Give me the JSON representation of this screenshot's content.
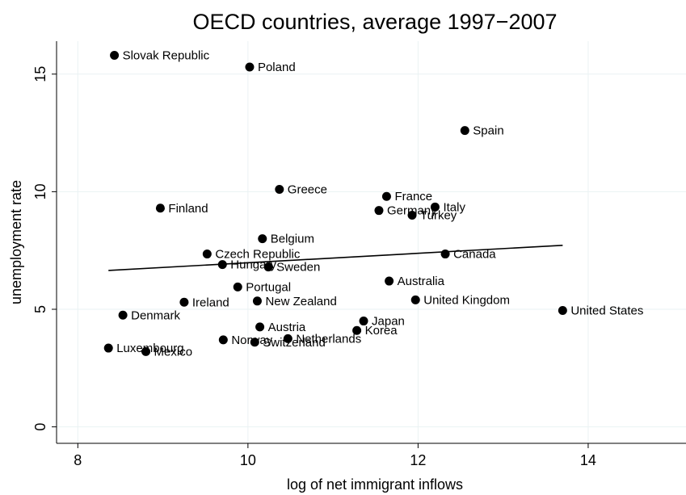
{
  "chart_data": {
    "type": "scatter",
    "title": "OECD countries, average 1997−2007",
    "xlabel": "log of net immigrant inflows",
    "ylabel": "unemployment rate",
    "xlim": [
      7.75,
      15.15
    ],
    "ylim": [
      -0.7,
      16.4
    ],
    "xticks": [
      8,
      10,
      12,
      14
    ],
    "yticks": [
      0,
      5,
      10,
      15
    ],
    "grid": true,
    "points": [
      {
        "label": "Slovak Republic",
        "x": 8.43,
        "y": 15.8
      },
      {
        "label": "Poland",
        "x": 10.02,
        "y": 15.3
      },
      {
        "label": "Spain",
        "x": 12.55,
        "y": 12.6
      },
      {
        "label": "Greece",
        "x": 10.37,
        "y": 10.1
      },
      {
        "label": "France",
        "x": 11.63,
        "y": 9.8
      },
      {
        "label": "Italy",
        "x": 12.2,
        "y": 9.35
      },
      {
        "label": "Finland",
        "x": 8.97,
        "y": 9.3
      },
      {
        "label": "Germany",
        "x": 11.54,
        "y": 9.2
      },
      {
        "label": "Turkey",
        "x": 11.93,
        "y": 9.0
      },
      {
        "label": "Belgium",
        "x": 10.17,
        "y": 8.0
      },
      {
        "label": "Czech Republic",
        "x": 9.52,
        "y": 7.35
      },
      {
        "label": "Canada",
        "x": 12.32,
        "y": 7.35
      },
      {
        "label": "Hungary",
        "x": 9.7,
        "y": 6.9
      },
      {
        "label": "Sweden",
        "x": 10.24,
        "y": 6.8
      },
      {
        "label": "Australia",
        "x": 11.66,
        "y": 6.2
      },
      {
        "label": "Portugal",
        "x": 9.88,
        "y": 5.95
      },
      {
        "label": "United Kingdom",
        "x": 11.97,
        "y": 5.4
      },
      {
        "label": "New Zealand",
        "x": 10.11,
        "y": 5.35
      },
      {
        "label": "Ireland",
        "x": 9.25,
        "y": 5.3
      },
      {
        "label": "United States",
        "x": 13.7,
        "y": 4.95
      },
      {
        "label": "Denmark",
        "x": 8.53,
        "y": 4.75
      },
      {
        "label": "Japan",
        "x": 11.36,
        "y": 4.5
      },
      {
        "label": "Austria",
        "x": 10.14,
        "y": 4.25
      },
      {
        "label": "Korea",
        "x": 11.28,
        "y": 4.1
      },
      {
        "label": "Netherlands",
        "x": 10.47,
        "y": 3.75
      },
      {
        "label": "Norway",
        "x": 9.71,
        "y": 3.7
      },
      {
        "label": "Switzerland",
        "x": 10.08,
        "y": 3.6
      },
      {
        "label": "Luxembourg",
        "x": 8.36,
        "y": 3.35
      },
      {
        "label": "Mexico",
        "x": 8.8,
        "y": 3.2
      }
    ],
    "fit_line": {
      "x": [
        8.36,
        13.7
      ],
      "y": [
        6.65,
        7.72
      ]
    }
  }
}
